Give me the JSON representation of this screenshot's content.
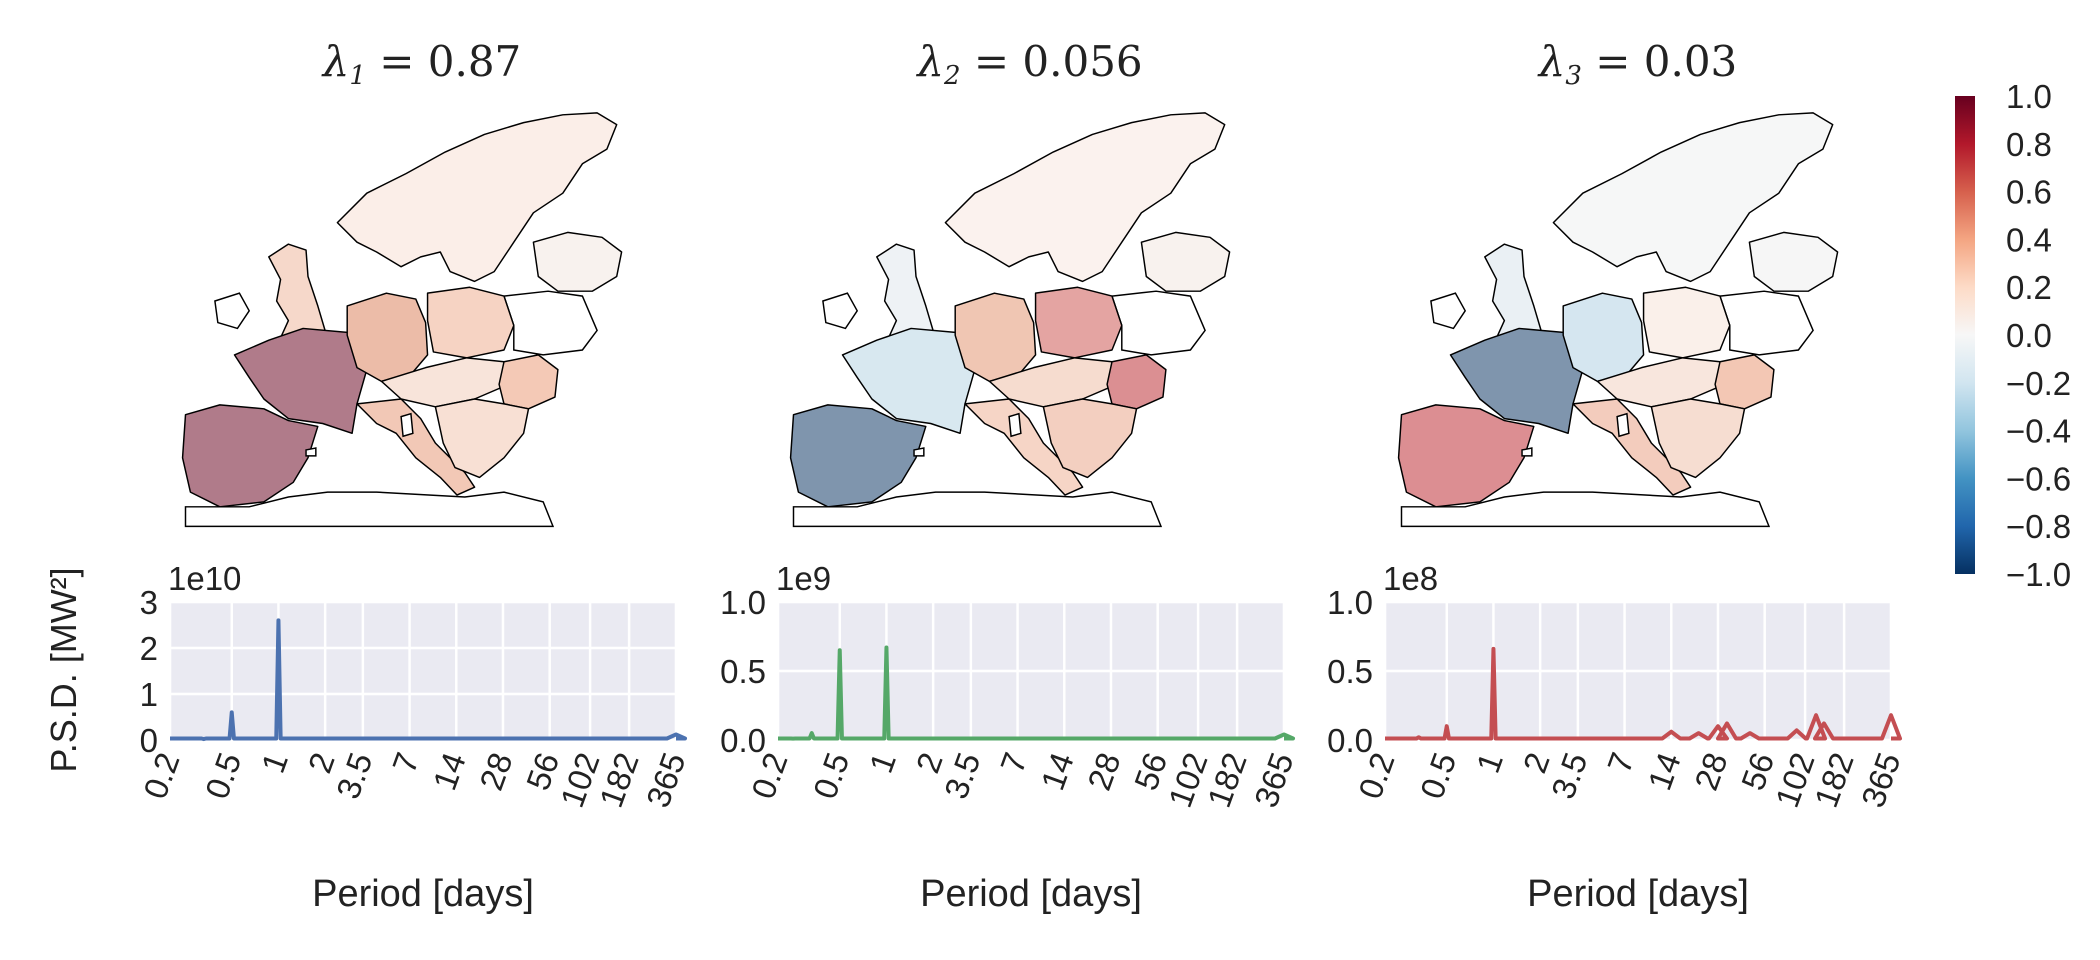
{
  "colors": {
    "blue": "#4c72b0",
    "green": "#55a868",
    "red": "#c44e52",
    "panel_bg": "#eaeaf2",
    "grid": "#ffffff",
    "border": "#000000"
  },
  "colorbar": {
    "ticks": [
      "1.0",
      "0.8",
      "0.6",
      "0.4",
      "0.2",
      "0.0",
      "−0.2",
      "−0.4",
      "−0.6",
      "−0.8",
      "−1.0"
    ],
    "stops": [
      "#67001f",
      "#b2182b",
      "#d6604d",
      "#f4a582",
      "#fddbc7",
      "#f7f7f7",
      "#d1e5f0",
      "#92c5de",
      "#4393c3",
      "#2166ac",
      "#053061"
    ]
  },
  "chart_data": [
    {
      "type": "map",
      "title_lambda": "λ",
      "title_sub": "1",
      "title_rest": " = 0.87",
      "regions": [
        {
          "name": "france",
          "color": "#b07b8a"
        },
        {
          "name": "iberia",
          "color": "#b07b8a"
        },
        {
          "name": "germany",
          "color": "#ecbca8"
        },
        {
          "name": "poland",
          "color": "#f6d3c3"
        },
        {
          "name": "uk",
          "color": "#f6d8ca"
        },
        {
          "name": "italy",
          "color": "#f2c8b6"
        },
        {
          "name": "romania",
          "color": "#f4c9b6"
        },
        {
          "name": "scandinavia",
          "color": "#fbeee8"
        },
        {
          "name": "balkans",
          "color": "#f8e0d4"
        },
        {
          "name": "central",
          "color": "#f8e4da"
        },
        {
          "name": "baltics",
          "color": "#f8f2ee"
        }
      ]
    },
    {
      "type": "map",
      "title_lambda": "λ",
      "title_sub": "2",
      "title_rest": " = 0.056",
      "regions": [
        {
          "name": "france",
          "color": "#d8e8f0"
        },
        {
          "name": "iberia",
          "color": "#7f95ad"
        },
        {
          "name": "germany",
          "color": "#f0c6b3"
        },
        {
          "name": "poland",
          "color": "#e4a4a2"
        },
        {
          "name": "uk",
          "color": "#eef2f5"
        },
        {
          "name": "italy",
          "color": "#f6d5c6"
        },
        {
          "name": "romania",
          "color": "#db8f92"
        },
        {
          "name": "scandinavia",
          "color": "#fbf2ee"
        },
        {
          "name": "balkans",
          "color": "#f3cfc0"
        },
        {
          "name": "central",
          "color": "#f6dccf"
        },
        {
          "name": "baltics",
          "color": "#f8f2ee"
        }
      ]
    },
    {
      "type": "map",
      "title_lambda": "λ",
      "title_sub": "3",
      "title_rest": " = 0.03",
      "regions": [
        {
          "name": "france",
          "color": "#7f95ad"
        },
        {
          "name": "iberia",
          "color": "#dc8e92"
        },
        {
          "name": "germany",
          "color": "#d5e6f0"
        },
        {
          "name": "poland",
          "color": "#faf0ea"
        },
        {
          "name": "uk",
          "color": "#eaf0f4"
        },
        {
          "name": "italy",
          "color": "#f3ccbd"
        },
        {
          "name": "romania",
          "color": "#f3c7b4"
        },
        {
          "name": "scandinavia",
          "color": "#f6f7f7"
        },
        {
          "name": "balkans",
          "color": "#f6ddd1"
        },
        {
          "name": "central",
          "color": "#f8e6dd"
        },
        {
          "name": "baltics",
          "color": "#f6f6f6"
        }
      ]
    },
    {
      "type": "line",
      "color": "blue",
      "ylabel": "P.S.D. [MW²]",
      "xlabel": "Period [days]",
      "offset_label": "1e10",
      "yticks": [
        "0",
        "1",
        "2",
        "3"
      ],
      "ylim": [
        0,
        3
      ],
      "xticks": [
        "0.2",
        "0.5",
        "1",
        "2",
        "3.5",
        "7",
        "14",
        "28",
        "56",
        "102",
        "182",
        "365"
      ],
      "xscale": "reciprocal",
      "peaks": [
        {
          "period": 0.5,
          "value": 0.6
        },
        {
          "period": 1,
          "value": 2.6
        },
        {
          "period": 0.33,
          "value": 0.02
        },
        {
          "period": 365,
          "value": 0.12
        }
      ]
    },
    {
      "type": "line",
      "color": "green",
      "xlabel": "Period [days]",
      "offset_label": "1e9",
      "yticks": [
        "0.0",
        "0.5",
        "1.0"
      ],
      "ylim": [
        0,
        1
      ],
      "xticks": [
        "0.2",
        "0.5",
        "1",
        "2",
        "3.5",
        "7",
        "14",
        "28",
        "56",
        "102",
        "182",
        "365"
      ],
      "xscale": "reciprocal",
      "peaks": [
        {
          "period": 0.5,
          "value": 0.65
        },
        {
          "period": 1,
          "value": 0.67
        },
        {
          "period": 0.33,
          "value": 0.05
        },
        {
          "period": 0.25,
          "value": 0.01
        },
        {
          "period": 365,
          "value": 0.04
        }
      ]
    },
    {
      "type": "line",
      "color": "red",
      "xlabel": "Period [days]",
      "offset_label": "1e8",
      "yticks": [
        "0.0",
        "0.5",
        "1.0"
      ],
      "ylim": [
        0,
        1
      ],
      "xticks": [
        "0.2",
        "0.5",
        "1",
        "2",
        "3.5",
        "7",
        "14",
        "28",
        "56",
        "102",
        "182",
        "365"
      ],
      "xscale": "reciprocal",
      "peaks": [
        {
          "period": 0.5,
          "value": 0.1
        },
        {
          "period": 1,
          "value": 0.66
        },
        {
          "period": 0.33,
          "value": 0.02
        },
        {
          "period": 14,
          "value": 0.06
        },
        {
          "period": 21,
          "value": 0.05
        },
        {
          "period": 28,
          "value": 0.1
        },
        {
          "period": 32,
          "value": 0.12
        },
        {
          "period": 45,
          "value": 0.05
        },
        {
          "period": 90,
          "value": 0.07
        },
        {
          "period": 120,
          "value": 0.18
        },
        {
          "period": 135,
          "value": 0.12
        },
        {
          "period": 365,
          "value": 0.18
        }
      ]
    }
  ]
}
